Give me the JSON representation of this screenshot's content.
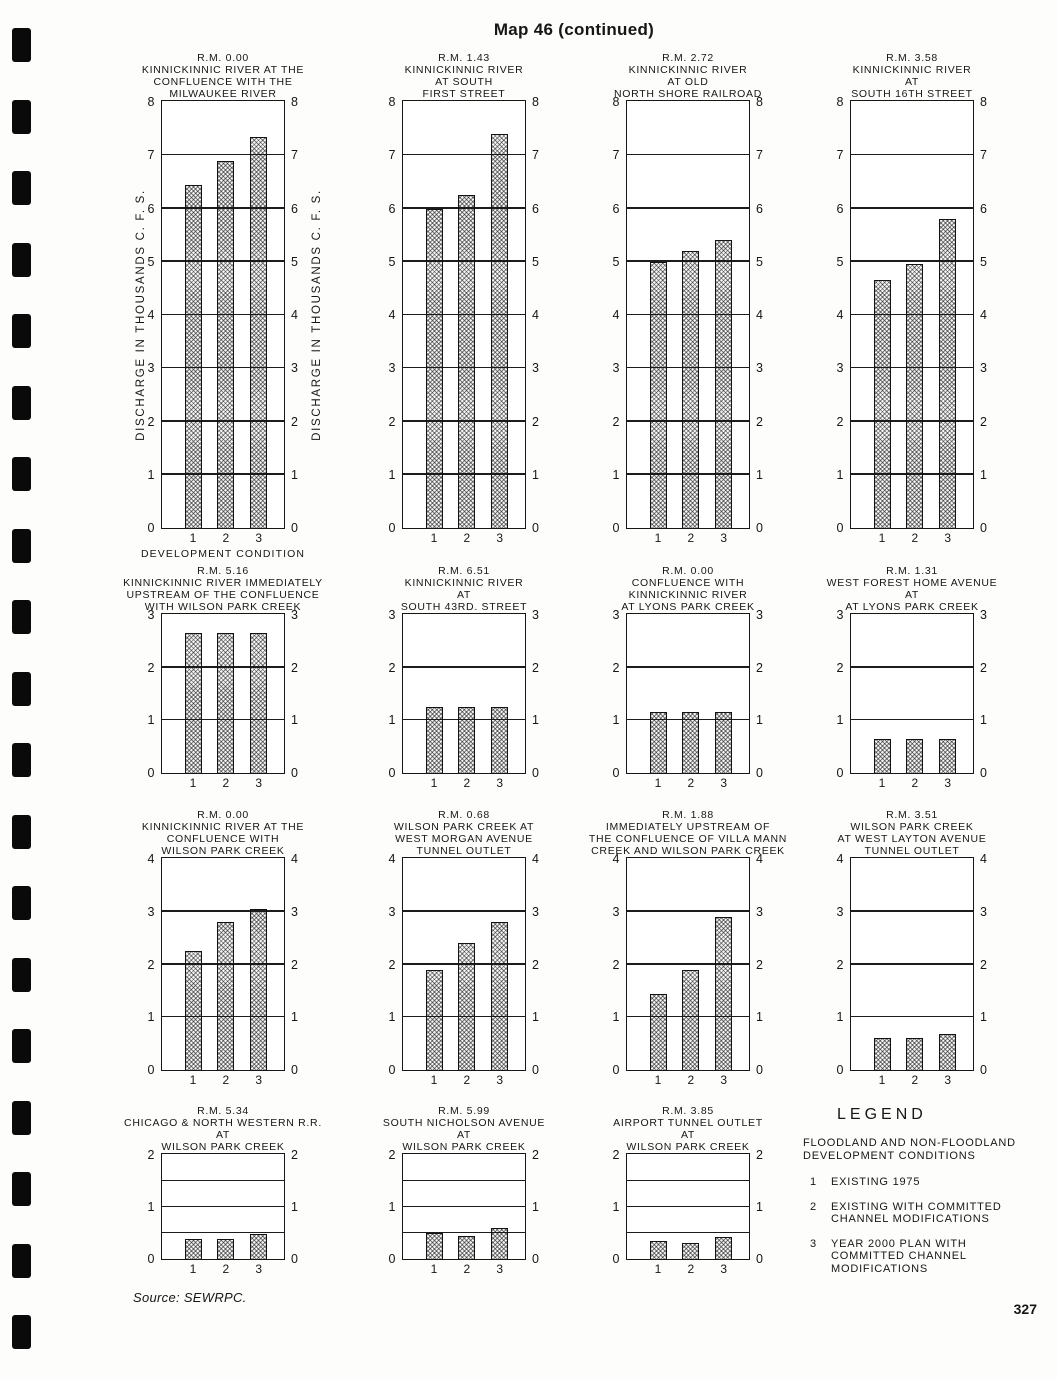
{
  "page": {
    "header": "Map 46 (continued)",
    "source": "Source: SEWRPC.",
    "page_number": "327"
  },
  "axis": {
    "y_label": "DISCHARGE IN THOUSANDS C. F. S.",
    "x_label": "DEVELOPMENT CONDITION",
    "x_ticks": [
      "1",
      "2",
      "3"
    ]
  },
  "legend": {
    "title": "LEGEND",
    "subtitle_lines": [
      "FLOODLAND AND NON-FLOODLAND",
      "DEVELOPMENT CONDITIONS"
    ],
    "items": [
      {
        "key": "1",
        "lines": [
          "EXISTING 1975"
        ]
      },
      {
        "key": "2",
        "lines": [
          "EXISTING WITH COMMITTED",
          "CHANNEL MODIFICATIONS"
        ]
      },
      {
        "key": "3",
        "lines": [
          "YEAR 2000 PLAN WITH",
          "COMMITTED CHANNEL",
          "MODIFICATIONS"
        ]
      }
    ]
  },
  "chart_data": [
    {
      "type": "bar",
      "title_lines": [
        "R.M. 0.00",
        "KINNICKINNIC RIVER AT THE",
        "CONFLUENCE WITH THE",
        "MILWAUKEE RIVER"
      ],
      "categories": [
        "1",
        "2",
        "3"
      ],
      "values": [
        6.45,
        6.9,
        7.35
      ],
      "ylim": [
        0,
        8
      ],
      "gridline_step": 1,
      "xlabel": "DEVELOPMENT CONDITION",
      "ylabel": "DISCHARGE IN THOUSANDS C. F. S.",
      "show_axis_labels": true
    },
    {
      "type": "bar",
      "title_lines": [
        "R.M. 1.43",
        "KINNICKINNIC RIVER",
        "AT SOUTH",
        "FIRST STREET"
      ],
      "categories": [
        "1",
        "2",
        "3"
      ],
      "values": [
        6.0,
        6.25,
        7.4
      ],
      "ylim": [
        0,
        8
      ],
      "gridline_step": 1
    },
    {
      "type": "bar",
      "title_lines": [
        "R.M. 2.72",
        "KINNICKINNIC RIVER",
        "AT OLD",
        "NORTH SHORE RAILROAD"
      ],
      "categories": [
        "1",
        "2",
        "3"
      ],
      "values": [
        5.0,
        5.2,
        5.4
      ],
      "ylim": [
        0,
        8
      ],
      "gridline_step": 1
    },
    {
      "type": "bar",
      "title_lines": [
        "R.M. 3.58",
        "KINNICKINNIC RIVER",
        "AT",
        "SOUTH 16TH STREET"
      ],
      "categories": [
        "1",
        "2",
        "3"
      ],
      "values": [
        4.65,
        4.95,
        5.8
      ],
      "ylim": [
        0,
        8
      ],
      "gridline_step": 1
    },
    {
      "type": "bar",
      "title_lines": [
        "R.M. 5.16",
        "KINNICKINNIC RIVER IMMEDIATELY",
        "UPSTREAM OF THE CONFLUENCE",
        "WITH WILSON PARK CREEK"
      ],
      "categories": [
        "1",
        "2",
        "3"
      ],
      "values": [
        2.65,
        2.65,
        2.65
      ],
      "ylim": [
        0,
        3
      ],
      "gridline_step": 1
    },
    {
      "type": "bar",
      "title_lines": [
        "R.M. 6.51",
        "KINNICKINNIC RIVER",
        "AT",
        "SOUTH 43RD. STREET"
      ],
      "categories": [
        "1",
        "2",
        "3"
      ],
      "values": [
        1.25,
        1.25,
        1.25
      ],
      "ylim": [
        0,
        3
      ],
      "gridline_step": 1
    },
    {
      "type": "bar",
      "title_lines": [
        "R.M. 0.00",
        "CONFLUENCE WITH",
        "KINNICKINNIC RIVER",
        "AT LYONS PARK CREEK"
      ],
      "categories": [
        "1",
        "2",
        "3"
      ],
      "values": [
        1.15,
        1.15,
        1.15
      ],
      "ylim": [
        0,
        3
      ],
      "gridline_step": 1
    },
    {
      "type": "bar",
      "title_lines": [
        "R.M. 1.31",
        "WEST FOREST HOME AVENUE",
        "AT",
        "AT LYONS PARK CREEK"
      ],
      "categories": [
        "1",
        "2",
        "3"
      ],
      "values": [
        0.65,
        0.65,
        0.65
      ],
      "ylim": [
        0,
        3
      ],
      "gridline_step": 1
    },
    {
      "type": "bar",
      "title_lines": [
        "R.M. 0.00",
        "KINNICKINNIC RIVER AT THE",
        "CONFLUENCE WITH",
        "WILSON PARK CREEK"
      ],
      "categories": [
        "1",
        "2",
        "3"
      ],
      "values": [
        2.25,
        2.8,
        3.05
      ],
      "ylim": [
        0,
        4
      ],
      "gridline_step": 1
    },
    {
      "type": "bar",
      "title_lines": [
        "R.M. 0.68",
        "WILSON PARK CREEK AT",
        "WEST MORGAN AVENUE",
        "TUNNEL OUTLET"
      ],
      "categories": [
        "1",
        "2",
        "3"
      ],
      "values": [
        1.9,
        2.4,
        2.8
      ],
      "ylim": [
        0,
        4
      ],
      "gridline_step": 1
    },
    {
      "type": "bar",
      "title_lines": [
        "R.M. 1.88",
        "IMMEDIATELY UPSTREAM OF",
        "THE CONFLUENCE OF VILLA MANN",
        "CREEK AND WILSON PARK CREEK"
      ],
      "categories": [
        "1",
        "2",
        "3"
      ],
      "values": [
        1.45,
        1.9,
        2.9
      ],
      "ylim": [
        0,
        4
      ],
      "gridline_step": 1
    },
    {
      "type": "bar",
      "title_lines": [
        "R.M. 3.51",
        "WILSON PARK CREEK",
        "AT WEST LAYTON AVENUE",
        "TUNNEL OUTLET"
      ],
      "categories": [
        "1",
        "2",
        "3"
      ],
      "values": [
        0.6,
        0.6,
        0.68
      ],
      "ylim": [
        0,
        4
      ],
      "gridline_step": 1
    },
    {
      "type": "bar",
      "title_lines": [
        "R.M. 5.34",
        "CHICAGO & NORTH WESTERN R.R.",
        "AT",
        "WILSON PARK CREEK"
      ],
      "categories": [
        "1",
        "2",
        "3"
      ],
      "values": [
        0.38,
        0.38,
        0.48
      ],
      "ylim": [
        0,
        2
      ],
      "gridline_step": 0.5
    },
    {
      "type": "bar",
      "title_lines": [
        "R.M. 5.99",
        "SOUTH NICHOLSON AVENUE",
        "AT",
        "WILSON PARK CREEK"
      ],
      "categories": [
        "1",
        "2",
        "3"
      ],
      "values": [
        0.5,
        0.45,
        0.6
      ],
      "ylim": [
        0,
        2
      ],
      "gridline_step": 0.5
    },
    {
      "type": "bar",
      "title_lines": [
        "R.M. 3.85",
        "AIRPORT TUNNEL OUTLET",
        "AT",
        "WILSON PARK CREEK"
      ],
      "categories": [
        "1",
        "2",
        "3"
      ],
      "values": [
        0.35,
        0.3,
        0.42
      ],
      "ylim": [
        0,
        2
      ],
      "gridline_step": 0.5
    }
  ]
}
